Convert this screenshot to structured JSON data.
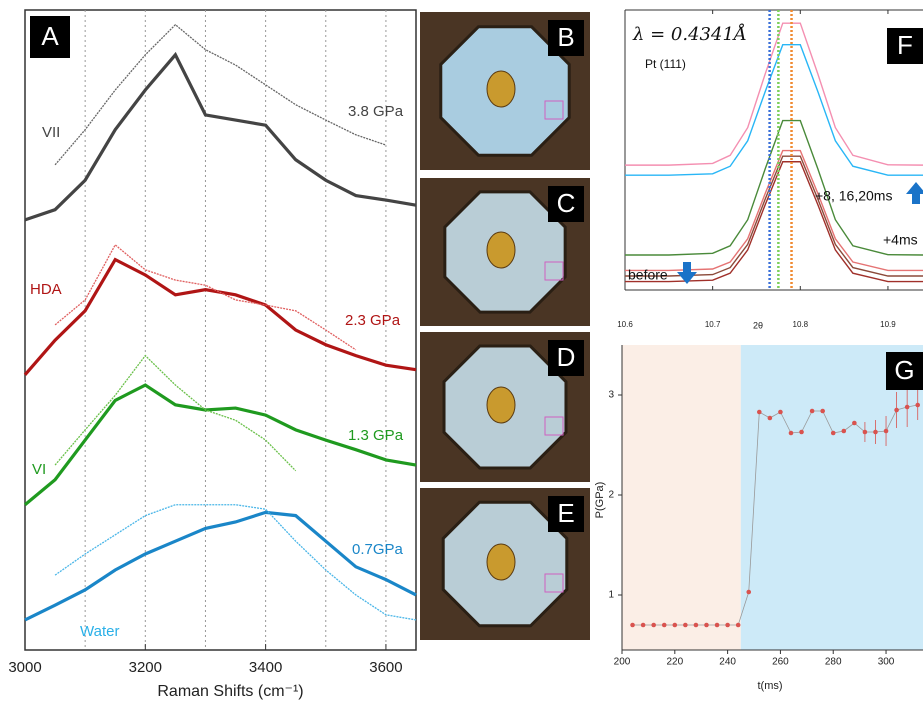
{
  "chart_data": [
    {
      "type": "spectra",
      "panel": "A",
      "x_label": "Raman Shifts (cm⁻¹)",
      "x": [
        3000,
        3050,
        3100,
        3150,
        3200,
        3250,
        3300,
        3350,
        3400,
        3450,
        3500,
        3550,
        3600,
        3650
      ],
      "xlim": [
        3000,
        3650
      ],
      "ylim": [
        0,
        100
      ],
      "xticks": [
        3000,
        3200,
        3400,
        3600
      ],
      "grid_x": [
        3100,
        3200,
        3300,
        3400,
        3500,
        3600
      ],
      "series": [
        {
          "name": "3.8 GPa",
          "phase": "VII",
          "color": "#444444",
          "style": "solid",
          "values": [
            67.2,
            68.8,
            73.4,
            81.3,
            87.5,
            93,
            83.6,
            82.8,
            82,
            76.6,
            73.4,
            71,
            70.3,
            69.5
          ]
        },
        {
          "color": "#666666",
          "style": "dotted",
          "values": [
            null,
            75.8,
            81.3,
            87.5,
            93,
            97.7,
            93.8,
            91.4,
            88.3,
            85.2,
            82.8,
            80.5,
            78.9,
            null
          ]
        },
        {
          "name": "2.3 GPa",
          "phase": "HDA",
          "color": "#b01515",
          "style": "solid",
          "values": [
            43,
            48.4,
            53,
            61,
            58.6,
            55.5,
            56.3,
            55.5,
            53.9,
            50,
            47.7,
            46,
            44.5,
            43.8
          ]
        },
        {
          "color": "#e06060",
          "style": "dotted",
          "values": [
            null,
            50.8,
            54.7,
            63.3,
            59.4,
            57.8,
            57,
            54.7,
            53.9,
            53,
            50,
            46.9,
            null,
            null
          ]
        },
        {
          "name": "1.3 GPa",
          "phase": "VI",
          "color": "#1f9a1f",
          "style": "solid",
          "values": [
            22.7,
            26.6,
            32.8,
            39,
            41.4,
            38.3,
            37.5,
            37.8,
            36.7,
            34.4,
            32.8,
            31.3,
            29.7,
            28.9
          ]
        },
        {
          "color": "#6ac04a",
          "style": "dotted",
          "values": [
            null,
            28.9,
            34.4,
            39.8,
            46,
            41.4,
            37.5,
            35.9,
            32.8,
            28,
            null,
            null,
            null,
            null
          ]
        },
        {
          "name": "0.7GPa",
          "phase": "Water",
          "color": "#1a86c8",
          "style": "solid",
          "values": [
            4.7,
            7,
            9.4,
            12.5,
            15,
            17,
            19,
            20,
            21.5,
            21,
            17,
            13,
            11,
            8.6
          ]
        },
        {
          "color": "#4ab6e8",
          "style": "dotted",
          "values": [
            null,
            11.7,
            15,
            18,
            21,
            22.7,
            22.7,
            22.7,
            22,
            17,
            12.5,
            8.6,
            5.5,
            4.7
          ]
        }
      ]
    },
    {
      "type": "line",
      "panel": "F",
      "x_label": "2θ",
      "annotations": [
        "λ = 0.4341Å",
        "Pt (111)",
        "+8, 16,20ms",
        "+4ms",
        "before"
      ],
      "x": [
        10.6,
        10.65,
        10.7,
        10.72,
        10.74,
        10.76,
        10.78,
        10.8,
        10.82,
        10.84,
        10.86,
        10.9,
        10.94
      ],
      "xlim": [
        10.6,
        10.94
      ],
      "ylim": [
        0,
        100
      ],
      "xticks": [
        10.6,
        10.7,
        10.8,
        10.9
      ],
      "markers": [
        {
          "value": 10.765,
          "color": "#3a6fd8"
        },
        {
          "value": 10.775,
          "color": "#7ccf5a"
        },
        {
          "value": 10.79,
          "color": "#f08a30"
        }
      ],
      "series": [
        {
          "color": "#f48fb1",
          "values": [
            44.6,
            44.6,
            45.2,
            48.1,
            58,
            77.2,
            95.3,
            95.3,
            77.2,
            58,
            48.1,
            44.7,
            44.6
          ]
        },
        {
          "color": "#29b6f6",
          "values": [
            41,
            41,
            41.5,
            44.2,
            53.3,
            70.9,
            87.6,
            87.6,
            70.9,
            53.3,
            44.2,
            41,
            41
          ]
        },
        {
          "color": "#4a8a3a",
          "values": [
            12.5,
            12.5,
            13.1,
            15.8,
            25.1,
            43.3,
            60.5,
            60.5,
            43.3,
            25.1,
            15.8,
            12.6,
            12.5
          ]
        },
        {
          "color": "#e57373",
          "values": [
            7,
            7,
            7.5,
            10,
            18.3,
            34.5,
            49.8,
            49.8,
            34.5,
            18.3,
            10,
            7,
            7
          ]
        },
        {
          "color": "#8b4a3a",
          "values": [
            5,
            5,
            5.5,
            8,
            16.3,
            32.5,
            47.8,
            47.8,
            32.5,
            16.3,
            8,
            5,
            5
          ]
        },
        {
          "color": "#a0302a",
          "values": [
            3,
            3,
            3.5,
            6,
            14.3,
            30.5,
            45.8,
            45.8,
            30.5,
            14.3,
            6,
            3,
            3
          ]
        }
      ]
    },
    {
      "type": "scatter",
      "panel": "G",
      "x_label": "t(ms)",
      "y_label": "P(GPa)",
      "x": [
        204,
        208,
        212,
        216,
        220,
        224,
        228,
        232,
        236,
        240,
        244,
        248,
        252,
        256,
        260,
        264,
        268,
        272,
        276,
        280,
        284,
        288,
        292,
        296,
        300,
        304,
        308,
        312
      ],
      "values": [
        0.7,
        0.7,
        0.7,
        0.7,
        0.7,
        0.7,
        0.7,
        0.7,
        0.7,
        0.7,
        0.7,
        1.03,
        2.83,
        2.77,
        2.83,
        2.62,
        2.63,
        2.84,
        2.84,
        2.62,
        2.64,
        2.72,
        2.63,
        2.63,
        2.64,
        2.85,
        2.88,
        2.9
      ],
      "errors": [
        null,
        null,
        null,
        null,
        null,
        null,
        null,
        null,
        null,
        null,
        null,
        null,
        null,
        null,
        null,
        null,
        null,
        null,
        null,
        null,
        null,
        null,
        0.1,
        0.12,
        0.15,
        0.18,
        0.2,
        0.15
      ],
      "xlim": [
        200,
        314
      ],
      "ylim": [
        0.45,
        3.5
      ],
      "xticks": [
        200,
        220,
        240,
        260,
        280,
        300
      ],
      "yticks": [
        1,
        2,
        3
      ],
      "color": "#d9534f",
      "regions": [
        {
          "from": 200,
          "to": 245,
          "color": "#fbeee6"
        },
        {
          "from": 245,
          "to": 314,
          "color": "#cdeaf8"
        }
      ]
    }
  ],
  "photos": [
    {
      "label": "B"
    },
    {
      "label": "C"
    },
    {
      "label": "D"
    },
    {
      "label": "E"
    }
  ]
}
